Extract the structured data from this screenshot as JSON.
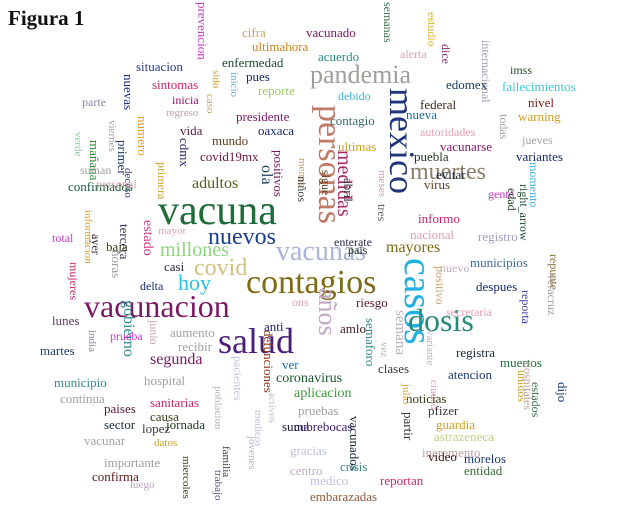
{
  "figure": {
    "title": "Figura 1",
    "type": "word-cloud"
  },
  "words": [
    {
      "text": "vacuna",
      "color": "#1f6b3a"
    },
    {
      "text": "vacunacion",
      "color": "#7a1a63"
    },
    {
      "text": "contagios",
      "color": "#7f6a15"
    },
    {
      "text": "casos",
      "color": "#1eb0e0"
    },
    {
      "text": "mexico",
      "color": "#22357a"
    },
    {
      "text": "personas",
      "color": "#c07a68"
    },
    {
      "text": "salud",
      "color": "#4a1f7a"
    },
    {
      "text": "pandemia",
      "color": "#9aa398"
    },
    {
      "text": "dosis",
      "color": "#2a8a7a"
    },
    {
      "text": "vacunas",
      "color": "#a9b4d6"
    },
    {
      "text": "nuevos",
      "color": "#1a3e8a"
    },
    {
      "text": "covid",
      "color": "#d2c280"
    },
    {
      "text": "años",
      "color": "#c3a6c5"
    },
    {
      "text": "muertes",
      "color": "#8a7d6a"
    },
    {
      "text": "hoy",
      "color": "#24c5ea"
    },
    {
      "text": "millones",
      "color": "#8ed37d"
    },
    {
      "text": "mayores",
      "color": "#7a6a15"
    },
    {
      "text": "medidas",
      "color": "#b0246a"
    },
    {
      "text": "adultos",
      "color": "#5a5a1a"
    },
    {
      "text": "segunda",
      "color": "#7a1a63"
    },
    {
      "text": "coronavirus",
      "color": "#1a5a2a"
    },
    {
      "text": "defunciones",
      "color": "#8a3a1a"
    },
    {
      "text": "aplicacion",
      "color": "#3a9a3a"
    },
    {
      "text": "estado",
      "color": "#c83a8a"
    },
    {
      "text": "gobierno",
      "color": "#2a8a8a"
    },
    {
      "text": "semana",
      "color": "#c0b0c0"
    },
    {
      "text": "ola",
      "color": "#1a3a5a"
    },
    {
      "text": "covid19mx",
      "color": "#6a1a3a"
    },
    {
      "text": "prevencion",
      "color": "#c83ac8"
    },
    {
      "text": "cifra",
      "color": "#c8a06a"
    },
    {
      "text": "vacunado",
      "color": "#7a1a63"
    },
    {
      "text": "semanas",
      "color": "#3a6a4a"
    },
    {
      "text": "alerta",
      "color": "#e0a0b0"
    },
    {
      "text": "estudio",
      "color": "#e0b020"
    },
    {
      "text": "dice",
      "color": "#7a1a63"
    },
    {
      "text": "internacional",
      "color": "#a09ab0"
    },
    {
      "text": "imss",
      "color": "#2a4a2a"
    },
    {
      "text": "ultimahora",
      "color": "#d08020"
    },
    {
      "text": "acuerdo",
      "color": "#2a8a8a"
    },
    {
      "text": "situacion",
      "color": "#2a3a8a"
    },
    {
      "text": "enfermedad",
      "color": "#1a4a2a"
    },
    {
      "text": "sido",
      "color": "#e0a020"
    },
    {
      "text": "inicio",
      "color": "#6ab0e0"
    },
    {
      "text": "pues",
      "color": "#1a2a6a"
    },
    {
      "text": "edomex",
      "color": "#1a3a5a"
    },
    {
      "text": "fallecimientos",
      "color": "#3ac8d8"
    },
    {
      "text": "nuevas",
      "color": "#1a2a8a"
    },
    {
      "text": "sintomas",
      "color": "#c8246a"
    },
    {
      "text": "caso",
      "color": "#c8a06a"
    },
    {
      "text": "reporte",
      "color": "#a0c860"
    },
    {
      "text": "debido",
      "color": "#3ab0e0"
    },
    {
      "text": "federal",
      "color": "#3a2a1a"
    },
    {
      "text": "nivel",
      "color": "#7a1a1a"
    },
    {
      "text": "parte",
      "color": "#8a8aa0"
    },
    {
      "text": "inicia",
      "color": "#8a1a6a"
    },
    {
      "text": "presidente",
      "color": "#7a1a63"
    },
    {
      "text": "contagio",
      "color": "#3a6a6a"
    },
    {
      "text": "nueva",
      "color": "#1a6aa0"
    },
    {
      "text": "warning",
      "color": "#d0a020"
    },
    {
      "text": "viernes",
      "color": "#a0a0c0"
    },
    {
      "text": "regreso",
      "color": "#c0a0a0"
    },
    {
      "text": "vida",
      "color": "#5a1a3a"
    },
    {
      "text": "oaxaca",
      "color": "#1a2a6a"
    },
    {
      "text": "autoridades",
      "color": "#e0a0b0"
    },
    {
      "text": "todas",
      "color": "#a0a0a0"
    },
    {
      "text": "verde",
      "color": "#8ad0a0"
    },
    {
      "text": "mañana",
      "color": "#3a8a3a"
    },
    {
      "text": "primer",
      "color": "#1a3a6a"
    },
    {
      "text": "numero",
      "color": "#e0a020"
    },
    {
      "text": "cdmx",
      "color": "#2a2a6a"
    },
    {
      "text": "mundo",
      "color": "#5a3a1a"
    },
    {
      "text": "ultimas",
      "color": "#c8a020"
    },
    {
      "text": "jueves",
      "color": "#a0a0a0"
    },
    {
      "text": "vacunarse",
      "color": "#8a1a6a"
    },
    {
      "text": "suman",
      "color": "#a0a0a0"
    },
    {
      "text": "deceso",
      "color": "#3a3a8a"
    },
    {
      "text": "positivos",
      "color": "#7a1a63"
    },
    {
      "text": "menos",
      "color": "#c8a06a"
    },
    {
      "text": "sigue",
      "color": "#5a3a1a"
    },
    {
      "text": "meses",
      "color": "#c8a0c0"
    },
    {
      "text": "puebla",
      "color": "#1a3a1a"
    },
    {
      "text": "variantes",
      "color": "#1a2a6a"
    },
    {
      "text": "momento",
      "color": "#3ab0e0"
    },
    {
      "text": "confirmados",
      "color": "#1a5a3a"
    },
    {
      "text": "primera",
      "color": "#c8a020"
    },
    {
      "text": "niños",
      "color": "#3a3a3a"
    },
    {
      "text": "abril",
      "color": "#3a3a3a"
    },
    {
      "text": "virus",
      "color": "#5a3a1a"
    },
    {
      "text": "evitar",
      "color": "#1a2a3a"
    },
    {
      "text": "right_arrow",
      "color": "#1a4a2a"
    },
    {
      "text": "tercera",
      "color": "#3a3a5a"
    },
    {
      "text": "personal",
      "color": "#c8a0a0"
    },
    {
      "text": "informacion",
      "color": "#e0a020"
    },
    {
      "text": "mayor",
      "color": "#e0a0b0"
    },
    {
      "text": "tres",
      "color": "#5a5a5a"
    },
    {
      "text": "informo",
      "color": "#c8246a"
    },
    {
      "text": "gente",
      "color": "#c83ac8"
    },
    {
      "text": "edad",
      "color": "#1a3a1a"
    },
    {
      "text": "baja",
      "color": "#3a3a1a"
    },
    {
      "text": "horas",
      "color": "#a0a0a0"
    },
    {
      "text": "enterate",
      "color": "#2a2a4a"
    },
    {
      "text": "nacional",
      "color": "#e0a0b0"
    },
    {
      "text": "registro",
      "color": "#a0a0c0"
    },
    {
      "text": "total",
      "color": "#c83ac8"
    },
    {
      "text": "ayer",
      "color": "#3a1a1a"
    },
    {
      "text": "casi",
      "color": "#2a2a4a"
    },
    {
      "text": "pais",
      "color": "#1a2a1a"
    },
    {
      "text": "nuevo",
      "color": "#c0b0c0"
    },
    {
      "text": "positivo",
      "color": "#c8a06a"
    },
    {
      "text": "municipios",
      "color": "#3a6aa0"
    },
    {
      "text": "repunte",
      "color": "#8a6a3a"
    },
    {
      "text": "mujeres",
      "color": "#c8246a"
    },
    {
      "text": "delta",
      "color": "#1a2a6a"
    },
    {
      "text": "riesgo",
      "color": "#5a1a3a"
    },
    {
      "text": "despues",
      "color": "#1a2a6a"
    },
    {
      "text": "veracruz",
      "color": "#a0a0a0"
    },
    {
      "text": "lunes",
      "color": "#5a3a5a"
    },
    {
      "text": "ons",
      "color": "#e0a0b0"
    },
    {
      "text": "anti",
      "color": "#1a1a6a"
    },
    {
      "text": "amlo",
      "color": "#3a1a1a"
    },
    {
      "text": "semaforo",
      "color": "#3a8a8a"
    },
    {
      "text": "reporta",
      "color": "#3a3aa0"
    },
    {
      "text": "secretaria",
      "color": "#e0a0b0"
    },
    {
      "text": "aumento",
      "color": "#a0a0a0"
    },
    {
      "text": "junio",
      "color": "#c8a0a0"
    },
    {
      "text": "recibir",
      "color": "#a0a0a0"
    },
    {
      "text": "martes",
      "color": "#1a3a5a"
    },
    {
      "text": "india",
      "color": "#8a8aa0"
    },
    {
      "text": "prueba",
      "color": "#c83ac8"
    },
    {
      "text": "vez",
      "color": "#c0b0c0"
    },
    {
      "text": "variante",
      "color": "#c0b0c0"
    },
    {
      "text": "registra",
      "color": "#1a2a3a"
    },
    {
      "text": "muertos",
      "color": "#1a6a3a"
    },
    {
      "text": "municipio",
      "color": "#3a8a8a"
    },
    {
      "text": "hospital",
      "color": "#a0a0a0"
    },
    {
      "text": "pacientes",
      "color": "#c0c0e0"
    },
    {
      "text": "ver",
      "color": "#1a6aa0"
    },
    {
      "text": "clases",
      "color": "#3a3a3a"
    },
    {
      "text": "atencion",
      "color": "#1a3a6a"
    },
    {
      "text": "unidos",
      "color": "#c8a020"
    },
    {
      "text": "hospitales",
      "color": "#c0a0a0"
    },
    {
      "text": "continua",
      "color": "#a0a0a0"
    },
    {
      "text": "ciudad",
      "color": "#e0a0b0"
    },
    {
      "text": "sanitarias",
      "color": "#c8246a"
    },
    {
      "text": "noticias",
      "color": "#3a3a1a"
    },
    {
      "text": "estados",
      "color": "#3a6a4a"
    },
    {
      "text": "dijo",
      "color": "#1a3a6a"
    },
    {
      "text": "paises",
      "color": "#5a1a3a"
    },
    {
      "text": "causa",
      "color": "#3a3a1a"
    },
    {
      "text": "poblacion",
      "color": "#c0b0c0"
    },
    {
      "text": "activos",
      "color": "#c0c0e0"
    },
    {
      "text": "pruebas",
      "color": "#a0a0a0"
    },
    {
      "text": "julio",
      "color": "#e0a020"
    },
    {
      "text": "pfizer",
      "color": "#3a3a3a"
    },
    {
      "text": "sector",
      "color": "#1a2a3a"
    },
    {
      "text": "jornada",
      "color": "#1a3a1a"
    },
    {
      "text": "suma",
      "color": "#1a1a3a"
    },
    {
      "text": "cubrebocas",
      "color": "#3a1a6a"
    },
    {
      "text": "vacunados",
      "color": "#1a2a3a"
    },
    {
      "text": "guardia",
      "color": "#d0a020"
    },
    {
      "text": "lopez",
      "color": "#3a3a3a"
    },
    {
      "text": "partir",
      "color": "#3a3a3a"
    },
    {
      "text": "vacunar",
      "color": "#a0a0a0"
    },
    {
      "text": "medicos",
      "color": "#c0c0e0"
    },
    {
      "text": "jovenes",
      "color": "#c0b0c0"
    },
    {
      "text": "astrazeneca",
      "color": "#c0d080"
    },
    {
      "text": "datos",
      "color": "#c8a020"
    },
    {
      "text": "gracias",
      "color": "#c0c0e0"
    },
    {
      "text": "incremento",
      "color": "#c0a0a0"
    },
    {
      "text": "video",
      "color": "#3a1a1a"
    },
    {
      "text": "morelos",
      "color": "#1a3a6a"
    },
    {
      "text": "importante",
      "color": "#a0a0a0"
    },
    {
      "text": "familia",
      "color": "#3a3a3a"
    },
    {
      "text": "centro",
      "color": "#c0b0c0"
    },
    {
      "text": "crisis",
      "color": "#3a8a8a"
    },
    {
      "text": "entidad",
      "color": "#3a6a3a"
    },
    {
      "text": "confirma",
      "color": "#5a1a1a"
    },
    {
      "text": "miercoles",
      "color": "#3a3a1a"
    },
    {
      "text": "trabajo",
      "color": "#5a5a8a"
    },
    {
      "text": "medico",
      "color": "#c0c0e0"
    },
    {
      "text": "reportan",
      "color": "#c8246a"
    },
    {
      "text": "embarazadas",
      "color": "#8a5a3a"
    },
    {
      "text": "luego",
      "color": "#c0a0c0"
    }
  ]
}
